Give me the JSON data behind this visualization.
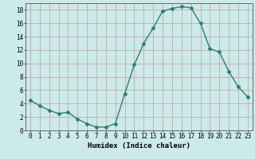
{
  "x": [
    0,
    1,
    2,
    3,
    4,
    5,
    6,
    7,
    8,
    9,
    10,
    11,
    12,
    13,
    14,
    15,
    16,
    17,
    18,
    19,
    20,
    21,
    22,
    23
  ],
  "y": [
    4.5,
    3.7,
    3.0,
    2.5,
    2.7,
    1.7,
    1.0,
    0.5,
    0.5,
    1.0,
    5.5,
    9.8,
    13.0,
    15.3,
    17.8,
    18.2,
    18.5,
    18.3,
    16.0,
    12.2,
    11.7,
    8.8,
    6.5,
    5.0
  ],
  "xlabel": "Humidex (Indice chaleur)",
  "line_color": "#2e7d6e",
  "marker_color": "#2e7d6e",
  "bg_color": "#cceaea",
  "grid_color": "#c4a8a8",
  "ylim": [
    0,
    19
  ],
  "xlim": [
    -0.5,
    23.5
  ],
  "yticks": [
    0,
    2,
    4,
    6,
    8,
    10,
    12,
    14,
    16,
    18
  ],
  "xticks": [
    0,
    1,
    2,
    3,
    4,
    5,
    6,
    7,
    8,
    9,
    10,
    11,
    12,
    13,
    14,
    15,
    16,
    17,
    18,
    19,
    20,
    21,
    22,
    23
  ],
  "tick_fontsize": 5.5,
  "xlabel_fontsize": 6.5
}
